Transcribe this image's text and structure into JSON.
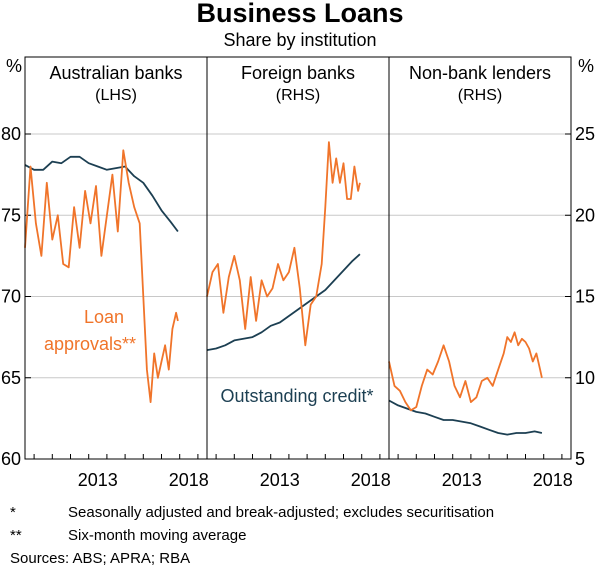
{
  "chart_data": {
    "type": "line",
    "title": "Business Loans",
    "subtitle": "Share by institution",
    "left_axis": {
      "unit": "%",
      "min": 60,
      "max": 80,
      "ticks": [
        "60",
        "65",
        "70",
        "75",
        "80"
      ]
    },
    "right_axis": {
      "unit": "%",
      "min": 5,
      "max": 25,
      "ticks": [
        "5",
        "10",
        "15",
        "20",
        "25"
      ]
    },
    "x_ticks": [
      "2013",
      "2018"
    ],
    "x_range": [
      2009.5,
      2019.5
    ],
    "panels": [
      {
        "title": "Australian banks",
        "axis_note": "(LHS)",
        "axis": "left",
        "series": [
          {
            "name": "Outstanding credit",
            "color": "#1c3f52",
            "x": [
              2009.5,
              2010.0,
              2010.5,
              2011.0,
              2011.5,
              2012.0,
              2012.5,
              2013.0,
              2013.5,
              2014.0,
              2014.5,
              2015.0,
              2015.5,
              2016.0,
              2016.5,
              2017.0,
              2017.5,
              2017.9
            ],
            "y": [
              78.1,
              77.8,
              77.8,
              78.3,
              78.2,
              78.6,
              78.6,
              78.2,
              78.0,
              77.8,
              77.9,
              78.0,
              77.4,
              77.0,
              76.2,
              75.3,
              74.6,
              74.0
            ]
          },
          {
            "name": "Loan approvals",
            "color": "#f0742a",
            "x": [
              2009.5,
              2009.8,
              2010.1,
              2010.4,
              2010.7,
              2011.0,
              2011.3,
              2011.6,
              2011.9,
              2012.2,
              2012.5,
              2012.8,
              2013.1,
              2013.4,
              2013.7,
              2014.0,
              2014.3,
              2014.6,
              2014.9,
              2015.2,
              2015.5,
              2015.8,
              2016.0,
              2016.2,
              2016.4,
              2016.6,
              2016.8,
              2017.0,
              2017.2,
              2017.4,
              2017.6,
              2017.8,
              2017.9
            ],
            "y": [
              73.0,
              78.0,
              74.5,
              72.5,
              77.0,
              73.5,
              75.0,
              72.0,
              71.8,
              75.5,
              73.0,
              76.5,
              74.5,
              76.8,
              72.5,
              75.0,
              77.5,
              74.0,
              79.0,
              77.0,
              75.5,
              74.5,
              70.0,
              65.5,
              63.5,
              66.5,
              65.0,
              66.0,
              67.0,
              65.5,
              68.0,
              69.0,
              68.5
            ]
          }
        ]
      },
      {
        "title": "Foreign banks",
        "axis_note": "(RHS)",
        "axis": "right",
        "series": [
          {
            "name": "Outstanding credit",
            "color": "#1c3f52",
            "x": [
              2009.5,
              2010.0,
              2010.5,
              2011.0,
              2011.5,
              2012.0,
              2012.5,
              2013.0,
              2013.5,
              2014.0,
              2014.5,
              2015.0,
              2015.5,
              2016.0,
              2016.5,
              2017.0,
              2017.5,
              2017.9
            ],
            "y": [
              11.7,
              11.8,
              12.0,
              12.3,
              12.4,
              12.5,
              12.8,
              13.2,
              13.4,
              13.8,
              14.2,
              14.6,
              15.0,
              15.4,
              16.0,
              16.6,
              17.2,
              17.6
            ]
          },
          {
            "name": "Loan approvals",
            "color": "#f0742a",
            "x": [
              2009.5,
              2009.8,
              2010.1,
              2010.4,
              2010.7,
              2011.0,
              2011.3,
              2011.6,
              2011.9,
              2012.2,
              2012.5,
              2012.8,
              2013.1,
              2013.4,
              2013.7,
              2014.0,
              2014.3,
              2014.6,
              2014.9,
              2015.2,
              2015.5,
              2015.8,
              2016.0,
              2016.2,
              2016.4,
              2016.6,
              2016.8,
              2017.0,
              2017.2,
              2017.4,
              2017.6,
              2017.8,
              2017.9
            ],
            "y": [
              15.0,
              16.5,
              17.0,
              14.0,
              16.2,
              17.5,
              16.0,
              13.0,
              16.2,
              13.5,
              16.0,
              15.0,
              15.5,
              17.0,
              16.0,
              16.5,
              18.0,
              15.5,
              12.0,
              14.5,
              15.0,
              17.0,
              20.5,
              24.5,
              22.0,
              23.5,
              22.0,
              23.2,
              21.0,
              21.0,
              23.0,
              21.5,
              22.0
            ]
          }
        ]
      },
      {
        "title": "Non-bank lenders",
        "axis_note": "(RHS)",
        "axis": "right",
        "series": [
          {
            "name": "Outstanding credit",
            "color": "#1c3f52",
            "x": [
              2009.5,
              2010.0,
              2010.5,
              2011.0,
              2011.5,
              2012.0,
              2012.5,
              2013.0,
              2013.5,
              2014.0,
              2014.5,
              2015.0,
              2015.5,
              2016.0,
              2016.5,
              2017.0,
              2017.5,
              2017.9
            ],
            "y": [
              8.6,
              8.3,
              8.1,
              7.9,
              7.8,
              7.6,
              7.4,
              7.4,
              7.3,
              7.2,
              7.0,
              6.8,
              6.6,
              6.5,
              6.6,
              6.6,
              6.7,
              6.6
            ]
          },
          {
            "name": "Loan approvals",
            "color": "#f0742a",
            "x": [
              2009.5,
              2009.8,
              2010.1,
              2010.4,
              2010.7,
              2011.0,
              2011.3,
              2011.6,
              2011.9,
              2012.2,
              2012.5,
              2012.8,
              2013.1,
              2013.4,
              2013.7,
              2014.0,
              2014.3,
              2014.6,
              2014.9,
              2015.2,
              2015.5,
              2015.8,
              2016.0,
              2016.2,
              2016.4,
              2016.6,
              2016.8,
              2017.0,
              2017.2,
              2017.4,
              2017.6,
              2017.8,
              2017.9
            ],
            "y": [
              11.0,
              9.5,
              9.2,
              8.5,
              8.0,
              8.2,
              9.5,
              10.5,
              10.2,
              11.0,
              12.0,
              11.0,
              9.5,
              8.8,
              9.8,
              8.5,
              8.8,
              9.8,
              10.0,
              9.5,
              10.5,
              11.5,
              12.5,
              12.2,
              12.8,
              12.0,
              12.4,
              12.2,
              11.8,
              11.0,
              11.5,
              10.5,
              10.0
            ]
          }
        ]
      }
    ],
    "annotations": {
      "loan_line1": "Loan",
      "loan_line2": "approvals**",
      "credit": "Outstanding credit*"
    }
  },
  "notes": [
    {
      "marker": "*",
      "text": "Seasonally adjusted and break-adjusted; excludes securitisation"
    },
    {
      "marker": "**",
      "text": "Six-month moving average"
    }
  ],
  "sources": "Sources: ABS; APRA; RBA"
}
